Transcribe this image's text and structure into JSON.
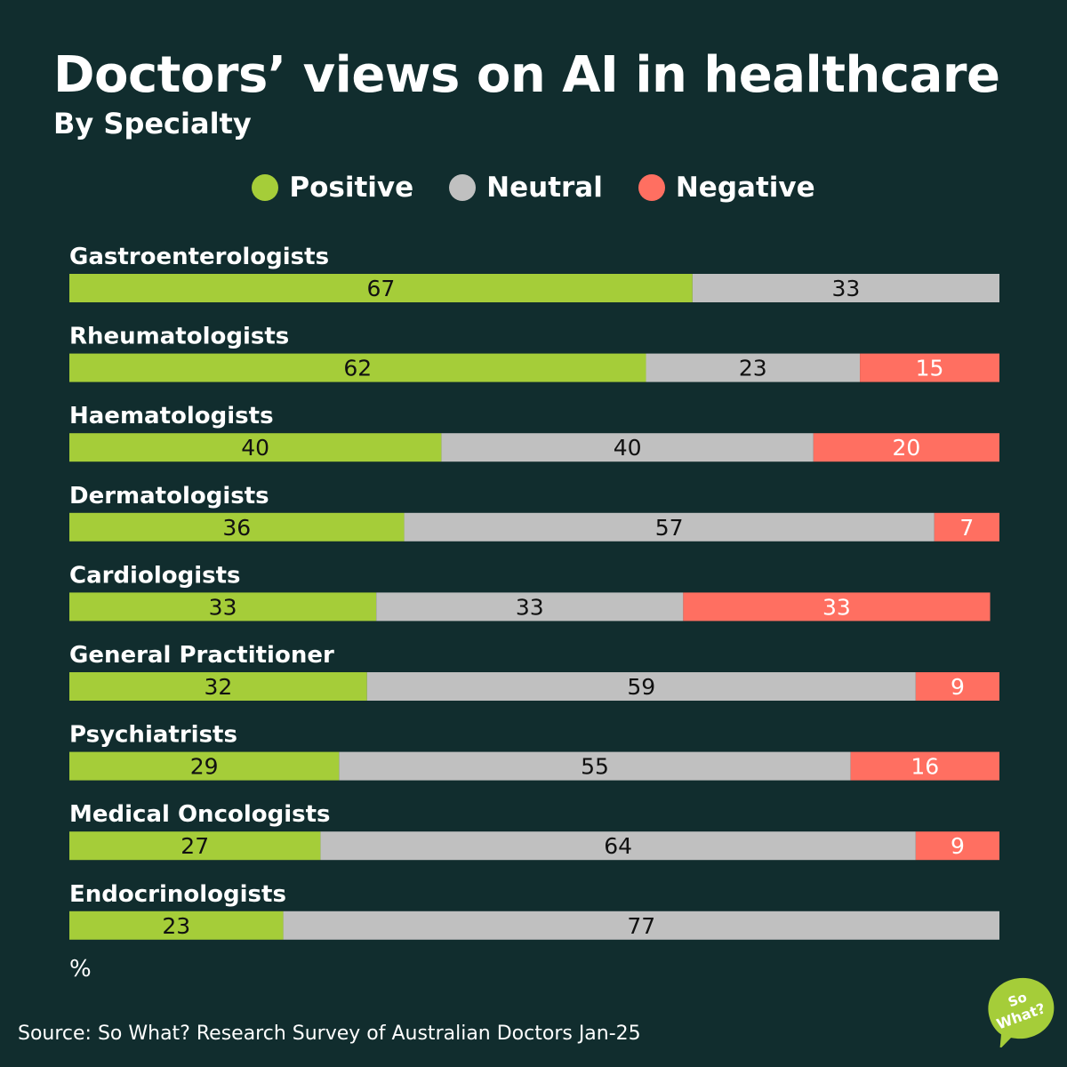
{
  "title": "Doctors’ views on AI in healthcare",
  "subtitle": "By Specialty",
  "unit": "%",
  "source": "Source: So What? Research Survey of Australian Doctors Jan-25",
  "logo_text": "So What?",
  "colors": {
    "background": "#112d2e",
    "positive": "#a5cd39",
    "neutral": "#c0c0c0",
    "negative": "#ff6f61"
  },
  "chart_data": {
    "type": "bar",
    "orientation": "horizontal",
    "stacked": true,
    "title": "Doctors’ views on AI in healthcare",
    "subtitle": "By Specialty",
    "xlabel": "%",
    "xlim": [
      0,
      100
    ],
    "legend_position": "top",
    "categories": [
      "Gastroenterologists",
      "Rheumatologists",
      "Haematologists",
      "Dermatologists",
      "Cardiologists",
      "General Practitioner",
      "Psychiatrists",
      "Medical Oncologists",
      "Endocrinologists"
    ],
    "series": [
      {
        "name": "Positive",
        "color": "#a5cd39",
        "values": [
          67,
          62,
          40,
          36,
          33,
          32,
          29,
          27,
          23
        ]
      },
      {
        "name": "Neutral",
        "color": "#c0c0c0",
        "values": [
          33,
          23,
          40,
          57,
          33,
          59,
          55,
          64,
          77
        ]
      },
      {
        "name": "Negative",
        "color": "#ff6f61",
        "values": [
          0,
          15,
          20,
          7,
          33,
          9,
          16,
          9,
          0
        ]
      }
    ]
  }
}
